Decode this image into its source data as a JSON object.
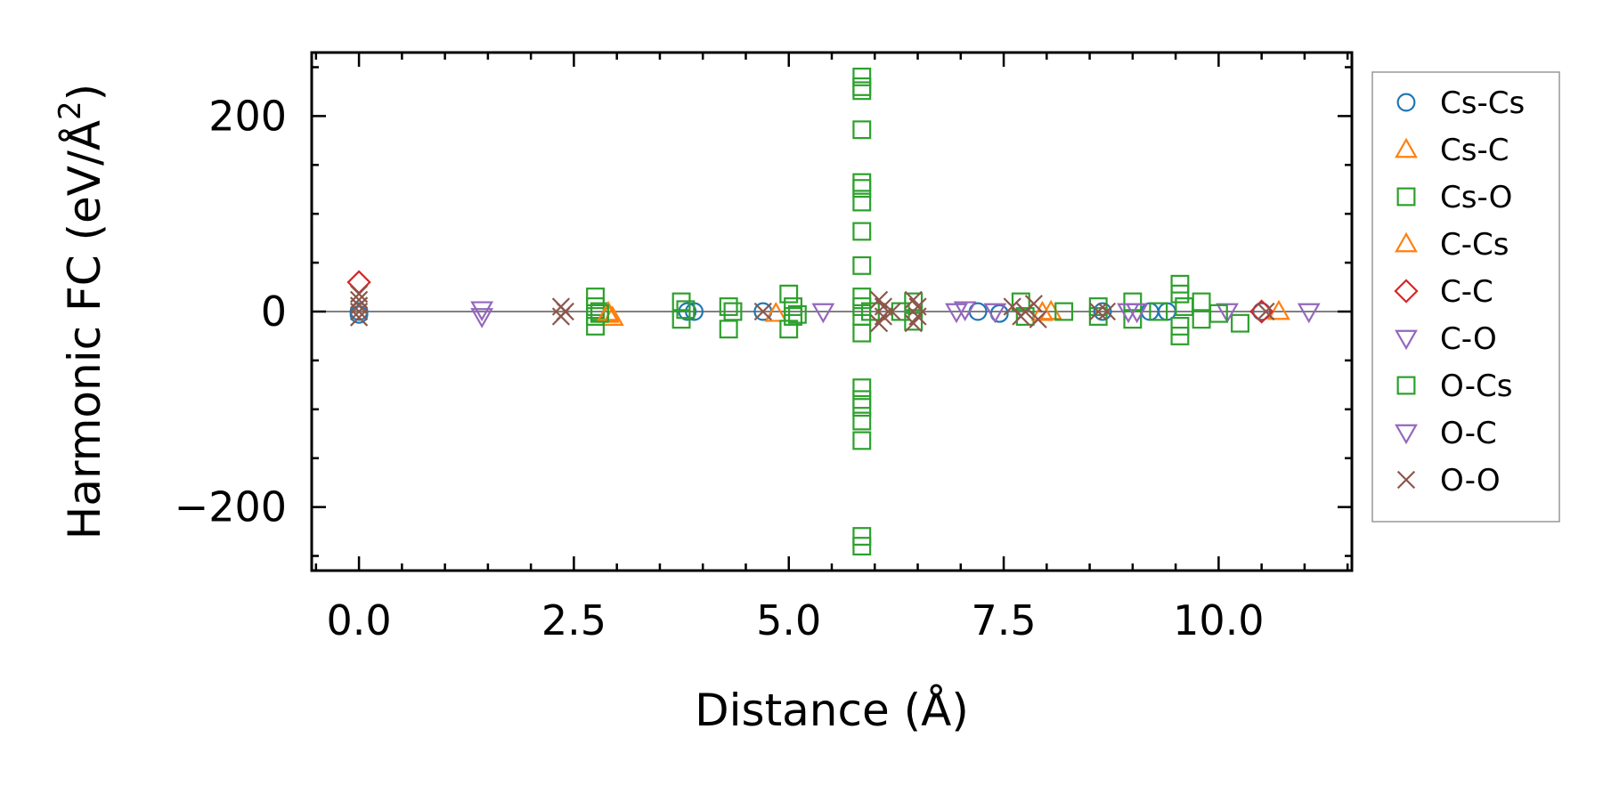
{
  "chart_data": {
    "type": "scatter",
    "title": "",
    "xlabel": "Distance (Å)",
    "ylabel_main": "Harmonic FC (eV/Å",
    "ylabel_sup": "2",
    "ylabel_close": ")",
    "xlim": [
      -0.55,
      11.55
    ],
    "ylim": [
      -265,
      265
    ],
    "xticks": [
      0.0,
      2.5,
      5.0,
      7.5,
      10.0
    ],
    "xtick_labels": [
      "0.0",
      "2.5",
      "5.0",
      "7.5",
      "10.0"
    ],
    "yticks": [
      -200,
      0,
      200
    ],
    "ytick_labels": [
      "−200",
      "0",
      "200"
    ],
    "legend_position": "outside right",
    "zero_line": true,
    "series": [
      {
        "name": "Cs-Cs",
        "marker": "circle",
        "color": "#1f77b4",
        "points": [
          [
            0.0,
            0
          ],
          [
            0.0,
            -3
          ],
          [
            3.82,
            0
          ],
          [
            3.9,
            0
          ],
          [
            4.7,
            0
          ],
          [
            7.2,
            0
          ],
          [
            7.45,
            -2
          ],
          [
            8.65,
            0
          ],
          [
            9.2,
            0
          ],
          [
            9.4,
            0
          ],
          [
            10.5,
            0
          ]
        ]
      },
      {
        "name": "Cs-C",
        "marker": "triangle-up",
        "color": "#ff7f0e",
        "points": [
          [
            2.9,
            -3
          ],
          [
            2.95,
            -6
          ],
          [
            4.85,
            -2
          ],
          [
            8.05,
            0
          ],
          [
            10.7,
            0
          ]
        ]
      },
      {
        "name": "Cs-O",
        "marker": "square",
        "color": "#2ca02c",
        "points": [
          [
            2.75,
            15
          ],
          [
            2.75,
            5
          ],
          [
            2.75,
            -5
          ],
          [
            2.75,
            -15
          ],
          [
            2.8,
            0
          ],
          [
            3.75,
            10
          ],
          [
            3.75,
            -8
          ],
          [
            3.8,
            2
          ],
          [
            4.3,
            5
          ],
          [
            4.3,
            -18
          ],
          [
            5.0,
            18
          ],
          [
            5.0,
            -18
          ],
          [
            5.05,
            5
          ],
          [
            5.05,
            -5
          ],
          [
            5.85,
            240
          ],
          [
            5.85,
            230
          ],
          [
            5.85,
            226
          ],
          [
            5.85,
            186
          ],
          [
            5.85,
            132
          ],
          [
            5.85,
            126
          ],
          [
            5.85,
            112
          ],
          [
            5.85,
            82
          ],
          [
            5.85,
            47
          ],
          [
            5.85,
            15
          ],
          [
            5.85,
            5
          ],
          [
            5.85,
            -5
          ],
          [
            5.85,
            -22
          ],
          [
            5.85,
            -78
          ],
          [
            5.85,
            -90
          ],
          [
            5.85,
            -98
          ],
          [
            5.85,
            -112
          ],
          [
            5.85,
            -132
          ],
          [
            5.85,
            -230
          ],
          [
            5.85,
            -240
          ],
          [
            5.95,
            0
          ],
          [
            6.45,
            10
          ],
          [
            6.45,
            -10
          ],
          [
            7.7,
            10
          ],
          [
            7.75,
            -5
          ],
          [
            8.2,
            0
          ],
          [
            8.6,
            5
          ],
          [
            8.6,
            -5
          ],
          [
            9.0,
            10
          ],
          [
            9.0,
            -8
          ],
          [
            9.55,
            28
          ],
          [
            9.55,
            18
          ],
          [
            9.55,
            -15
          ],
          [
            9.55,
            -25
          ],
          [
            9.6,
            5
          ],
          [
            9.8,
            10
          ],
          [
            9.8,
            -8
          ],
          [
            10.25,
            -12
          ]
        ]
      },
      {
        "name": "C-Cs",
        "marker": "triangle-up",
        "color": "#ff7f0e",
        "points": [
          [
            2.9,
            -1
          ],
          [
            7.95,
            -1
          ]
        ]
      },
      {
        "name": "C-C",
        "marker": "diamond",
        "color": "#d62728",
        "points": [
          [
            0.0,
            30
          ],
          [
            10.5,
            0
          ]
        ]
      },
      {
        "name": "C-O",
        "marker": "triangle-down",
        "color": "#9467bd",
        "points": [
          [
            1.43,
            2
          ],
          [
            5.4,
            0
          ],
          [
            7.05,
            2
          ],
          [
            7.4,
            0
          ],
          [
            9.05,
            0
          ],
          [
            10.1,
            0
          ],
          [
            11.05,
            0
          ]
        ]
      },
      {
        "name": "O-Cs",
        "marker": "square",
        "color": "#2ca02c",
        "points": [
          [
            2.8,
            -2
          ],
          [
            4.35,
            0
          ],
          [
            5.1,
            -3
          ],
          [
            6.3,
            0
          ],
          [
            9.3,
            0
          ],
          [
            10.0,
            -2
          ]
        ]
      },
      {
        "name": "O-C",
        "marker": "triangle-down",
        "color": "#9467bd",
        "points": [
          [
            1.43,
            -5
          ],
          [
            6.95,
            0
          ],
          [
            8.95,
            0
          ]
        ]
      },
      {
        "name": "O-O",
        "marker": "x",
        "color": "#8c564b",
        "points": [
          [
            0.0,
            18
          ],
          [
            0.0,
            12
          ],
          [
            0.0,
            6
          ],
          [
            0.0,
            0
          ],
          [
            0.0,
            -6
          ],
          [
            2.35,
            5
          ],
          [
            2.35,
            -5
          ],
          [
            2.4,
            0
          ],
          [
            4.7,
            0
          ],
          [
            6.05,
            12
          ],
          [
            6.05,
            -12
          ],
          [
            6.1,
            5
          ],
          [
            6.1,
            -5
          ],
          [
            6.2,
            0
          ],
          [
            6.45,
            12
          ],
          [
            6.45,
            -12
          ],
          [
            6.5,
            5
          ],
          [
            6.5,
            -5
          ],
          [
            7.6,
            5
          ],
          [
            7.7,
            -5
          ],
          [
            7.75,
            0
          ],
          [
            7.85,
            8
          ],
          [
            7.9,
            -8
          ],
          [
            8.6,
            0
          ],
          [
            8.7,
            0
          ],
          [
            10.55,
            0
          ]
        ]
      }
    ]
  }
}
